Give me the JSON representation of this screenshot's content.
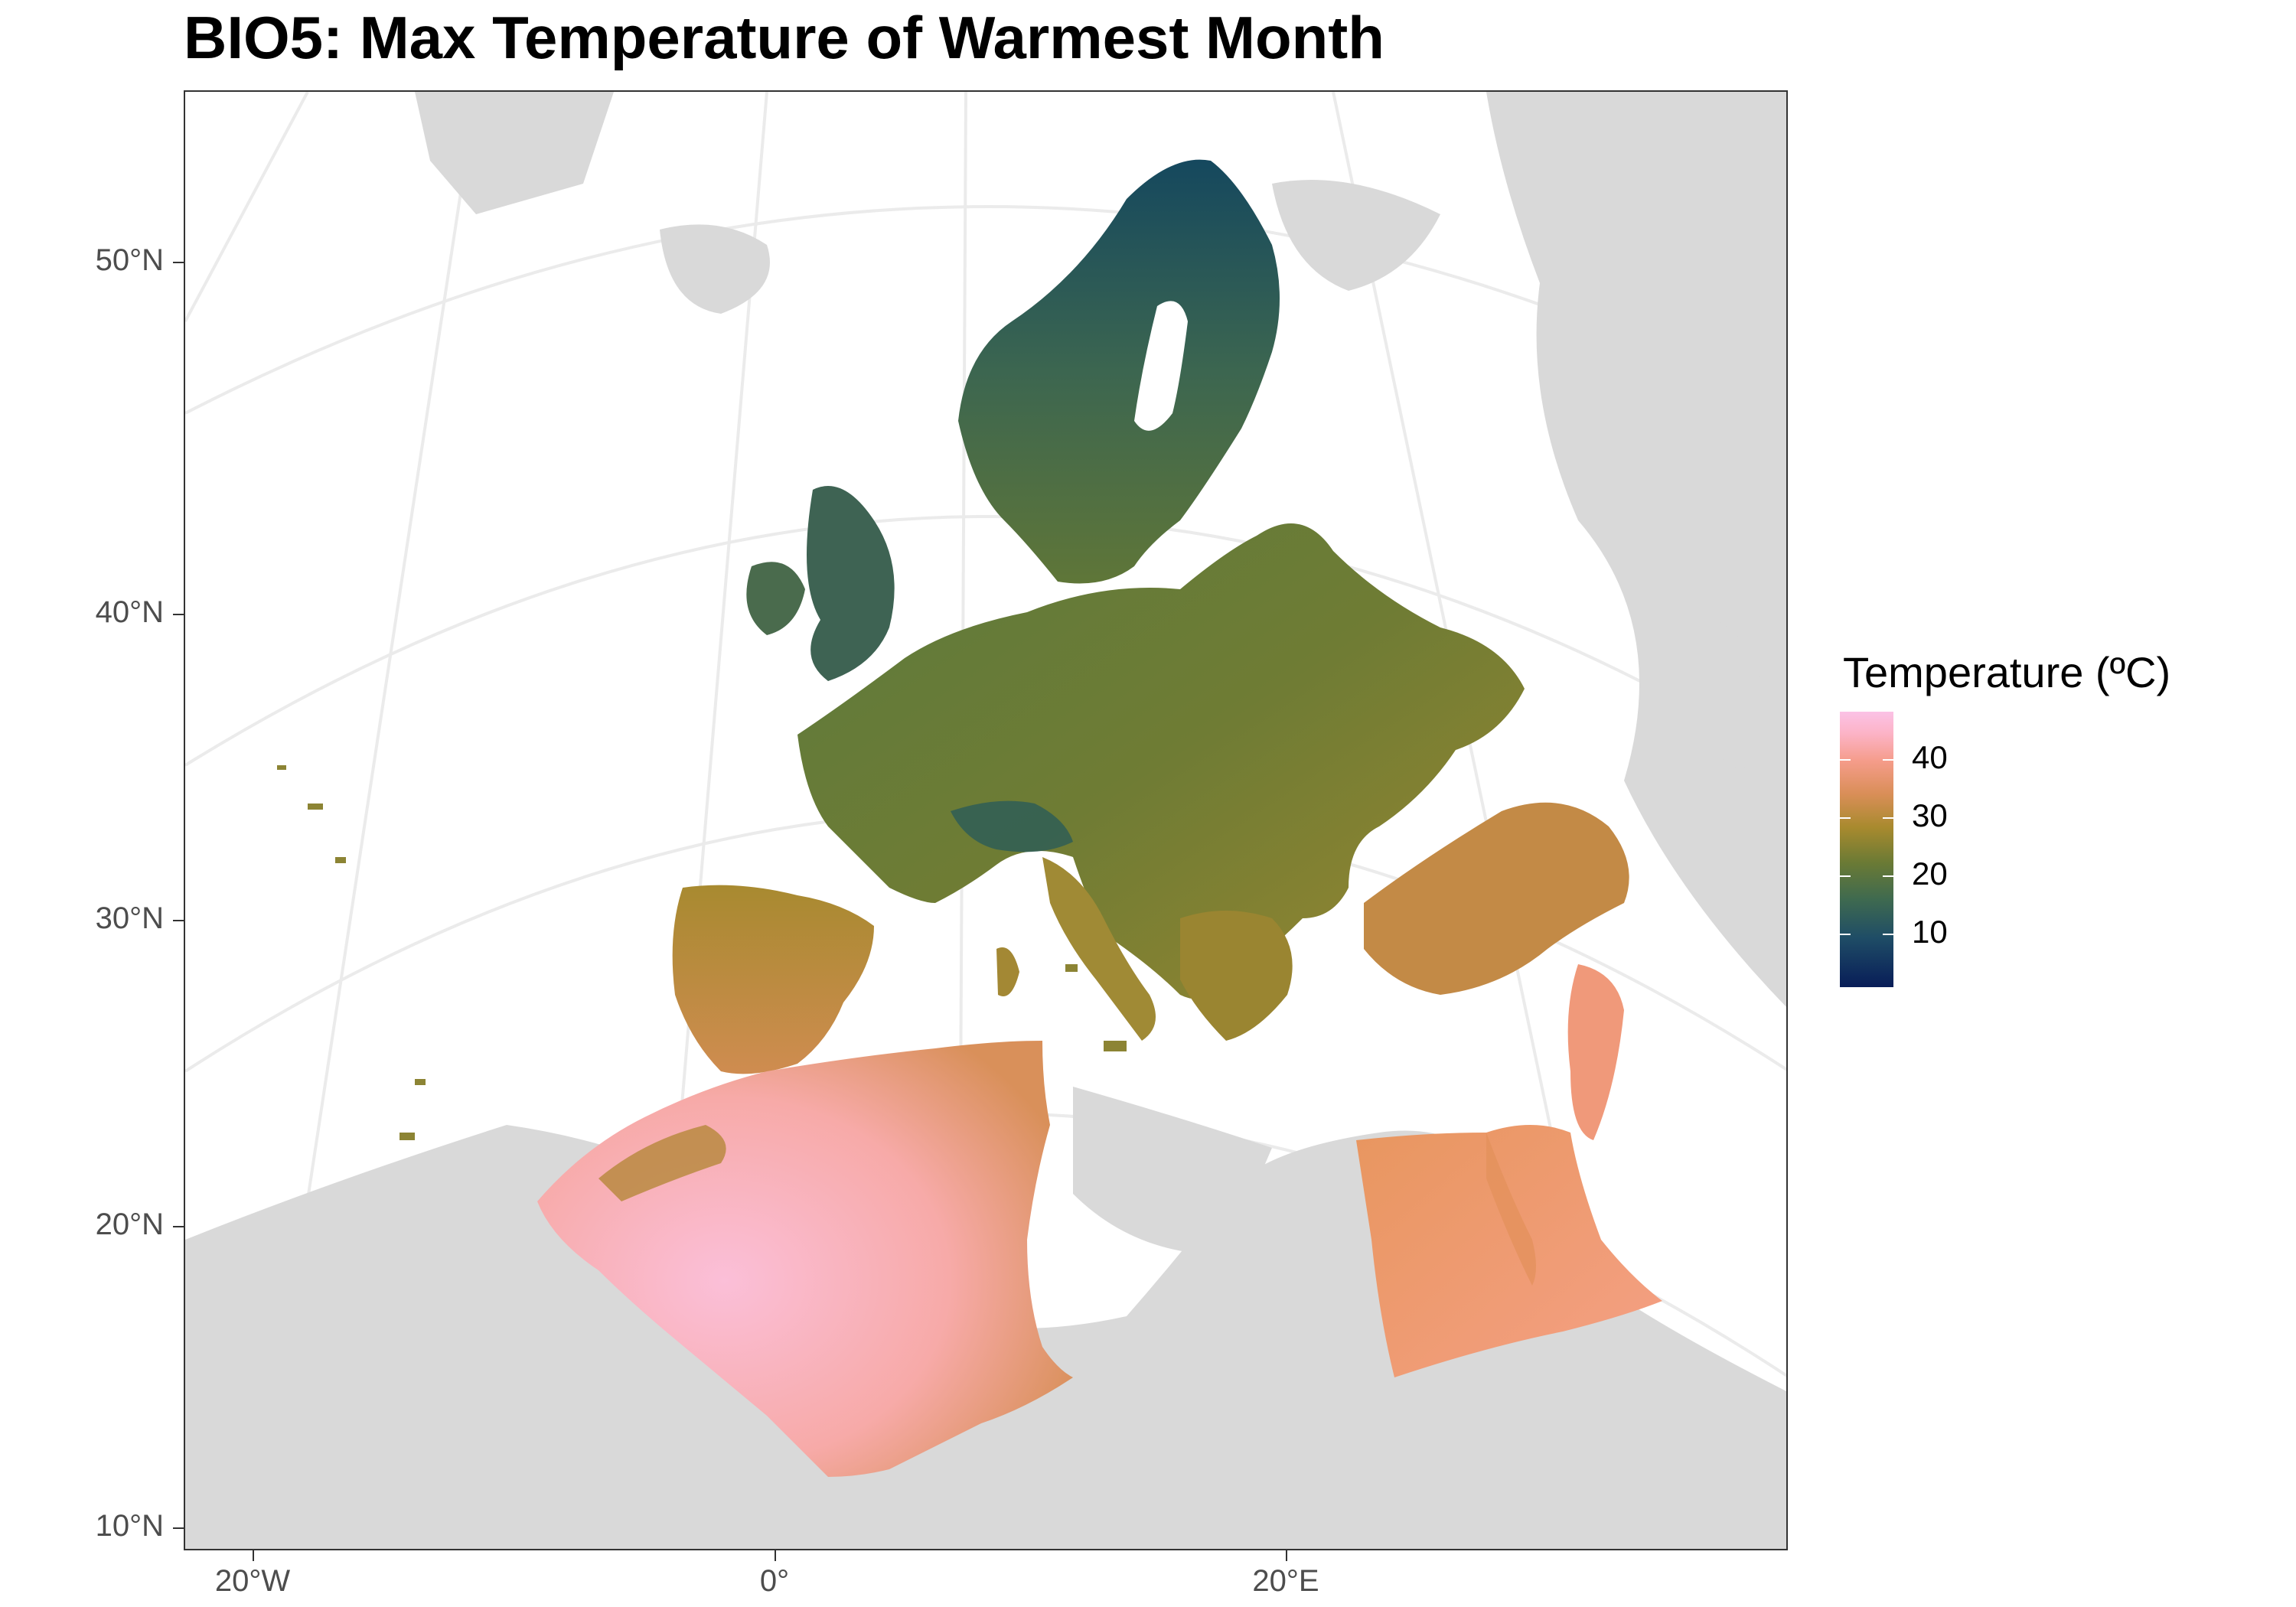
{
  "title": "BIO5: Max Temperature of Warmest Month",
  "map": {
    "y_axis_labels": [
      "50°N",
      "40°N",
      "30°N",
      "20°N",
      "10°N"
    ],
    "x_axis_labels": [
      "20°W",
      "0°",
      "20°E"
    ],
    "land_color": "#d9d9d9",
    "graticule_color": "#ebebeb"
  },
  "legend": {
    "title": "Temperature (ºC)",
    "labels": [
      "40",
      "30",
      "20",
      "10"
    ],
    "colors": [
      "#fbc2e6",
      "#f59c8a",
      "#a88a2e",
      "#3f6a4f",
      "#081d58"
    ]
  }
}
